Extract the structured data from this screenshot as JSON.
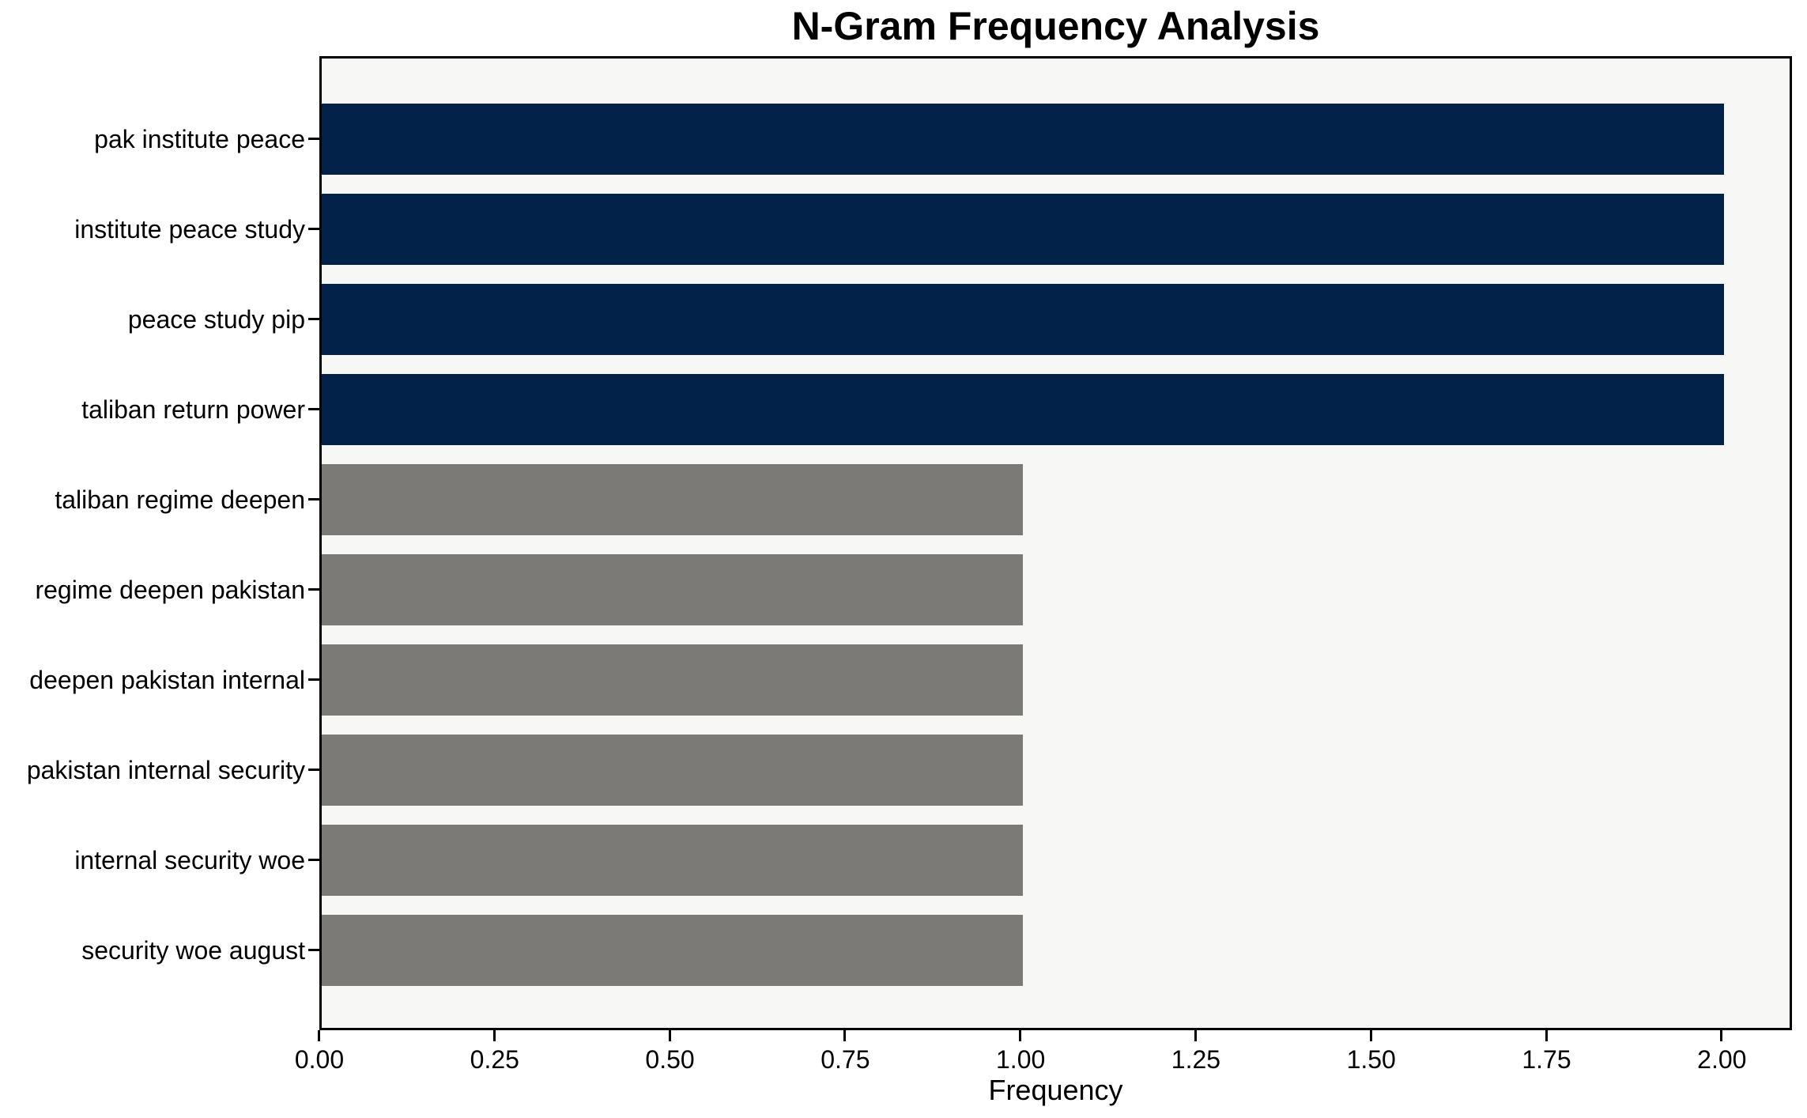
{
  "chart_data": {
    "type": "bar",
    "orientation": "horizontal",
    "title": "N-Gram Frequency Analysis",
    "xlabel": "Frequency",
    "ylabel": "",
    "categories": [
      "pak institute peace",
      "institute peace study",
      "peace study pip",
      "taliban return power",
      "taliban regime deepen",
      "regime deepen pakistan",
      "deepen pakistan internal",
      "pakistan internal security",
      "internal security woe",
      "security woe august"
    ],
    "values": [
      2,
      2,
      2,
      2,
      1,
      1,
      1,
      1,
      1,
      1
    ],
    "bar_colors": [
      "#032249",
      "#032249",
      "#032249",
      "#032249",
      "#7b7a76",
      "#7b7a76",
      "#7b7a76",
      "#7b7a76",
      "#7b7a76",
      "#7b7a76"
    ],
    "colors": {
      "high_frequency_bar": "#032249",
      "low_frequency_bar": "#7b7a76",
      "plot_background": "#f7f7f6",
      "spine": "#000000",
      "text": "#000000"
    },
    "xlim": [
      0,
      2.1
    ],
    "xticks": [
      0,
      0.25,
      0.5,
      0.75,
      1.0,
      1.25,
      1.5,
      1.75,
      2.0
    ],
    "xtick_labels": [
      "0.00",
      "0.25",
      "0.50",
      "0.75",
      "1.00",
      "1.25",
      "1.50",
      "1.75",
      "2.00"
    ],
    "grid": false,
    "legend": false
  }
}
